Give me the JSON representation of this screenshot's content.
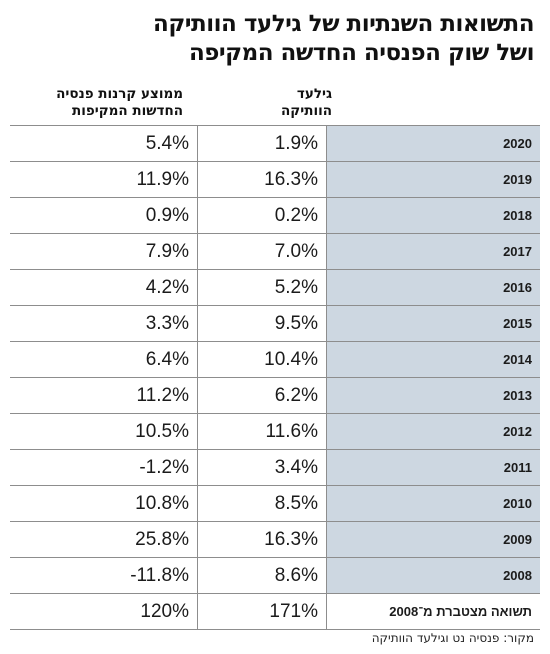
{
  "title_line1": "התשואות השנתיות של גילעד הוותיקה",
  "title_line2": "ושל שוק הפנסיה החדשה המקיפה",
  "chart_data": {
    "type": "table",
    "columns": {
      "gilad": [
        "גילעד",
        "הוותיקה"
      ],
      "avg": [
        "ממוצע קרנות פנסיה",
        "החדשות המקיפות"
      ]
    },
    "rows": [
      {
        "year": "2020",
        "gilad": "1.9%",
        "avg": "5.4%"
      },
      {
        "year": "2019",
        "gilad": "16.3%",
        "avg": "11.9%"
      },
      {
        "year": "2018",
        "gilad": "0.2%",
        "avg": "0.9%"
      },
      {
        "year": "2017",
        "gilad": "7.0%",
        "avg": "7.9%"
      },
      {
        "year": "2016",
        "gilad": "5.2%",
        "avg": "4.2%"
      },
      {
        "year": "2015",
        "gilad": "9.5%",
        "avg": "3.3%"
      },
      {
        "year": "2014",
        "gilad": "10.4%",
        "avg": "6.4%"
      },
      {
        "year": "2013",
        "gilad": "6.2%",
        "avg": "11.2%"
      },
      {
        "year": "2012",
        "gilad": "11.6%",
        "avg": "10.5%"
      },
      {
        "year": "2011",
        "gilad": "3.4%",
        "avg": "-1.2%"
      },
      {
        "year": "2010",
        "gilad": "8.5%",
        "avg": "10.8%"
      },
      {
        "year": "2009",
        "gilad": "16.3%",
        "avg": "25.8%"
      },
      {
        "year": "2008",
        "gilad": "8.6%",
        "avg": "-11.8%"
      }
    ],
    "total": {
      "label": "תשואה מצטברת מ־2008",
      "gilad": "171%",
      "avg": "120%"
    }
  },
  "source": "מקור: פנסיה נט וגילעד הוותיקה",
  "colors": {
    "year_cell_bg": "#cdd7e1",
    "grid_line": "#8d8d8d"
  }
}
